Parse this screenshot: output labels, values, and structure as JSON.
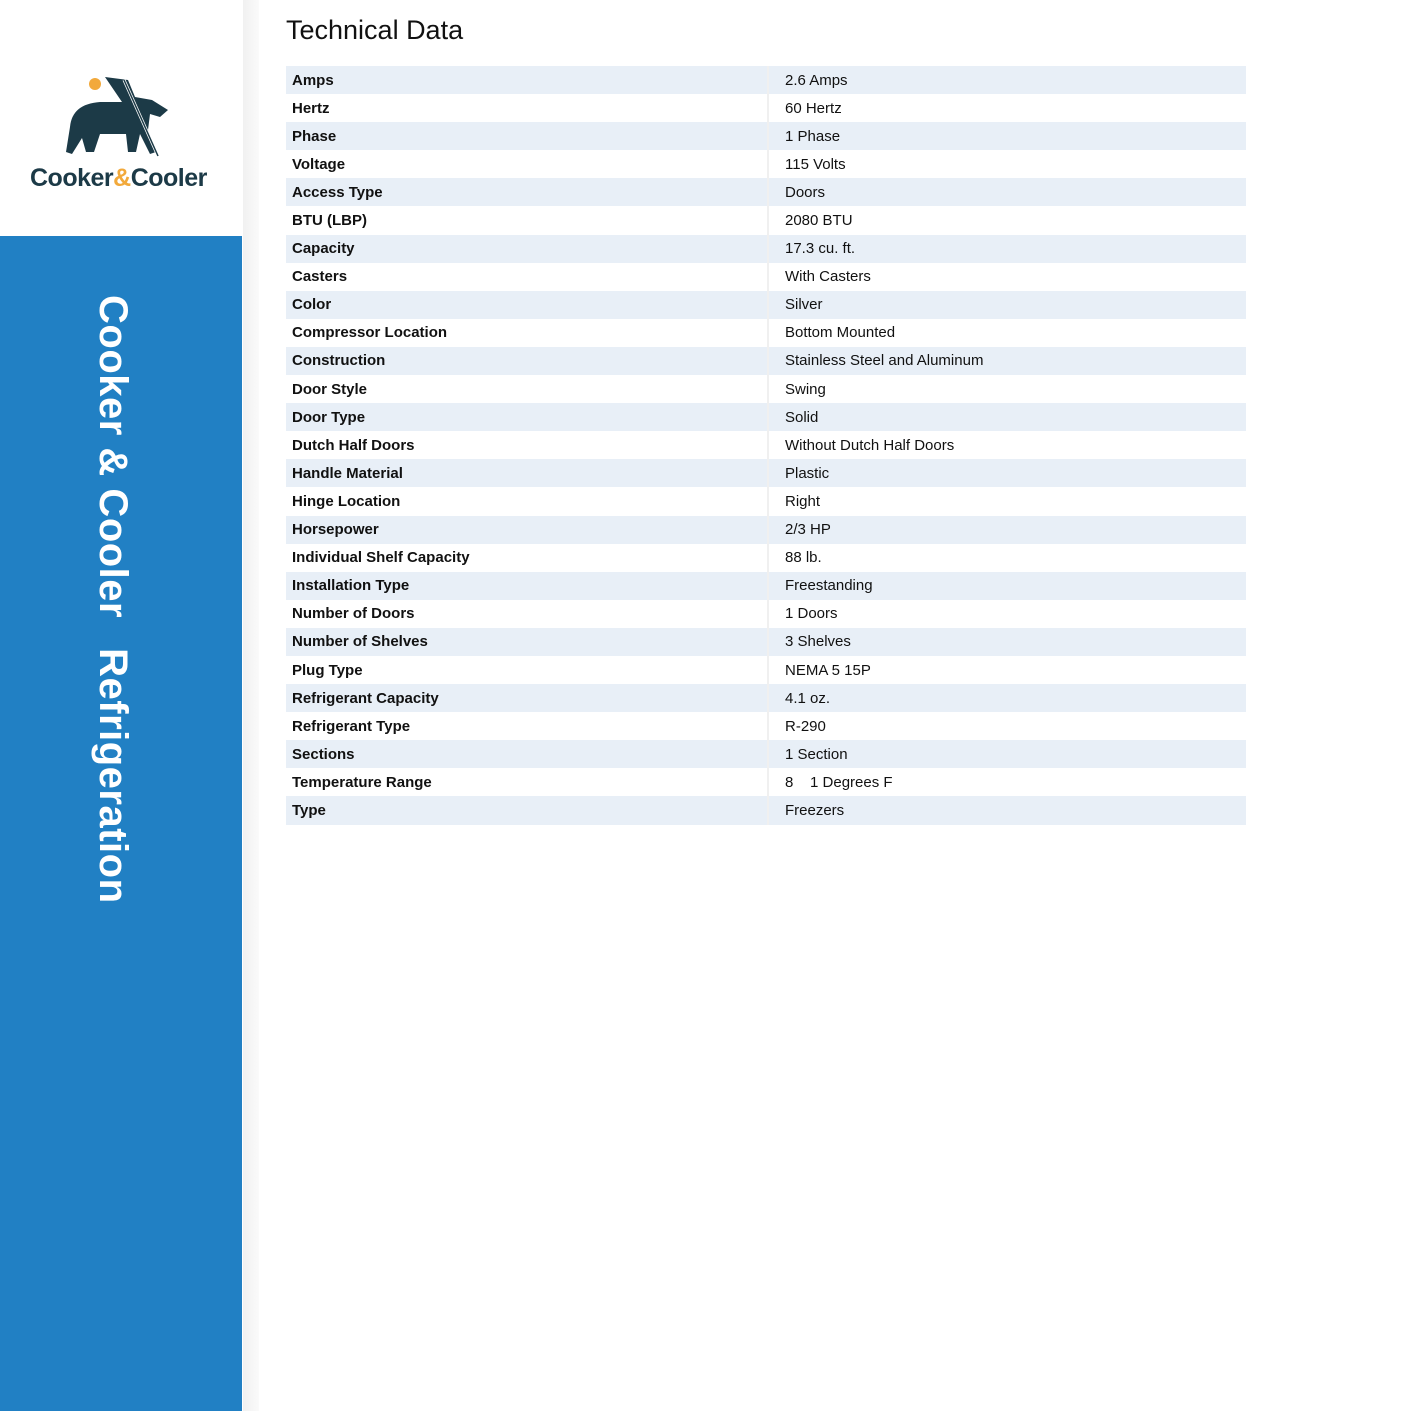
{
  "brand": {
    "name_part1": "Cooker",
    "name_amp": "&",
    "name_part2": "Cooler",
    "accent_color": "#f2a93b",
    "logo_color": "#1c3a47"
  },
  "sidebar": {
    "text1": "Cooker & Cooler",
    "text2": "Refrigeration",
    "color": "#2180c4"
  },
  "title": "Technical Data",
  "rows": [
    [
      "Amps",
      "2.6 Amps"
    ],
    [
      "Hertz",
      "60 Hertz"
    ],
    [
      "Phase",
      "1 Phase"
    ],
    [
      "Voltage",
      "115 Volts"
    ],
    [
      "Access Type",
      "Doors"
    ],
    [
      "BTU (LBP)",
      "2080 BTU"
    ],
    [
      "Capacity",
      "17.3 cu. ft."
    ],
    [
      "Casters",
      "With Casters"
    ],
    [
      "Color",
      "Silver"
    ],
    [
      "Compressor Location",
      "Bottom Mounted"
    ],
    [
      "Construction",
      "Stainless Steel and Aluminum"
    ],
    [
      "Door Style",
      "Swing"
    ],
    [
      "Door Type",
      "Solid"
    ],
    [
      "Dutch Half Doors",
      "Without Dutch Half Doors"
    ],
    [
      "Handle Material",
      "Plastic"
    ],
    [
      "Hinge Location",
      "Right"
    ],
    [
      "Horsepower",
      "2/3 HP"
    ],
    [
      "Individual Shelf Capacity",
      "88 lb."
    ],
    [
      "Installation Type",
      "Freestanding"
    ],
    [
      "Number of Doors",
      "1 Doors"
    ],
    [
      "Number of Shelves",
      "3 Shelves"
    ],
    [
      "Plug Type",
      "NEMA 5 15P"
    ],
    [
      "Refrigerant Capacity",
      "4.1 oz."
    ],
    [
      "Refrigerant Type",
      "R-290"
    ],
    [
      "Sections",
      "1 Section"
    ],
    [
      "Temperature Range",
      "8    1 Degrees F"
    ],
    [
      "Type",
      "Freezers"
    ]
  ]
}
